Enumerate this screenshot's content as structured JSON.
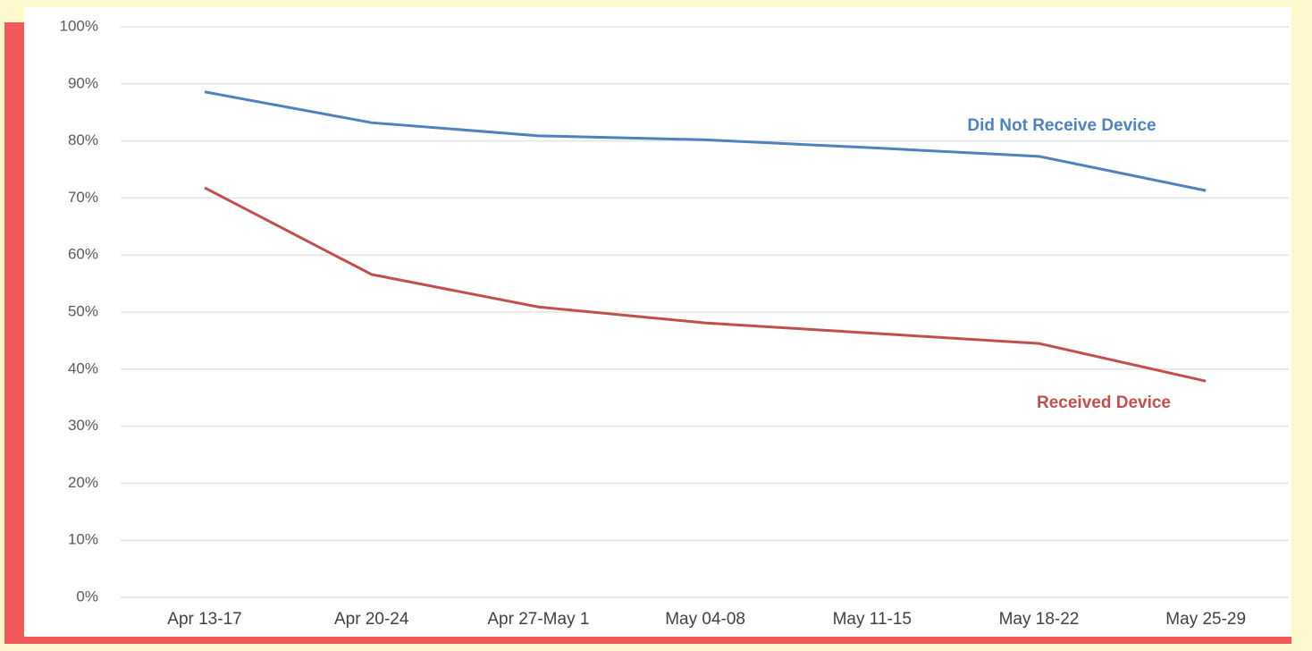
{
  "chart_data": {
    "type": "line",
    "categories": [
      "Apr 13-17",
      "Apr 20-24",
      "Apr 27-May 1",
      "May 04-08",
      "May 11-15",
      "May 18-22",
      "May 25-29"
    ],
    "series": [
      {
        "name": "Did Not Receive Device",
        "color": "#4f81bd",
        "values": [
          88.6,
          83.2,
          80.9,
          80.2,
          78.8,
          77.3,
          71.3
        ]
      },
      {
        "name": "Received Device",
        "color": "#c0504d",
        "values": [
          71.8,
          56.6,
          50.9,
          48.1,
          46.3,
          44.5,
          37.9
        ]
      }
    ],
    "ylim": [
      0,
      100
    ],
    "yticks": [
      {
        "value": 0,
        "label": "0%"
      },
      {
        "value": 10,
        "label": "10%"
      },
      {
        "value": 20,
        "label": "20%"
      },
      {
        "value": 30,
        "label": "30%"
      },
      {
        "value": 40,
        "label": "40%"
      },
      {
        "value": 50,
        "label": "50%"
      },
      {
        "value": 60,
        "label": "60%"
      },
      {
        "value": 70,
        "label": "70%"
      },
      {
        "value": 80,
        "label": "80%"
      },
      {
        "value": 90,
        "label": "90%"
      },
      {
        "value": 100,
        "label": "100%"
      }
    ],
    "grid": true
  }
}
